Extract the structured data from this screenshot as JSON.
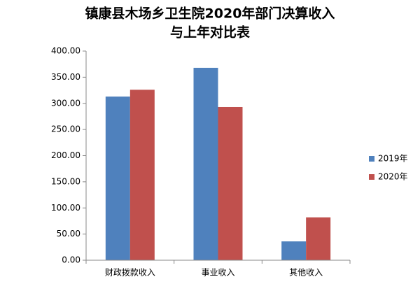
{
  "chart_data": {
    "type": "bar",
    "title": [
      "镇康县木场乡卫生院2020年部门决算收入",
      "与上年对比表"
    ],
    "categories": [
      "财政拨款收入",
      "事业收入",
      "其他收入"
    ],
    "series": [
      {
        "name": "2019年",
        "color": "#4f81bd",
        "values": [
          313,
          368,
          36
        ]
      },
      {
        "name": "2020年",
        "color": "#c0504d",
        "values": [
          326,
          293,
          82
        ]
      }
    ],
    "ylim": [
      0,
      400
    ],
    "yticks": [
      {
        "value": 0,
        "label": "0.00"
      },
      {
        "value": 50,
        "label": "50.00"
      },
      {
        "value": 100,
        "label": "100.00"
      },
      {
        "value": 150,
        "label": "150.00"
      },
      {
        "value": 200,
        "label": "200.00"
      },
      {
        "value": 250,
        "label": "250.00"
      },
      {
        "value": 300,
        "label": "300.00"
      },
      {
        "value": 350,
        "label": "350.00"
      },
      {
        "value": 400,
        "label": "400.00"
      }
    ],
    "grid": false,
    "legend": "right"
  }
}
